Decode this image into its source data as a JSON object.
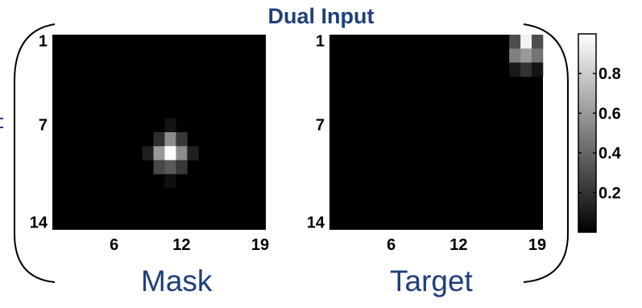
{
  "header": {
    "title": "Dual Input"
  },
  "labels": {
    "mask": "Mask",
    "target": "Target"
  },
  "colors": {
    "title_text": "#1f3f7a",
    "bracket": "#000000",
    "background": "#ffffff"
  },
  "chart_data": [
    {
      "name": "Mask",
      "type": "heatmap",
      "colormap": "gray",
      "n_rows": 14,
      "n_cols": 19,
      "y_ticks": [
        1,
        7,
        14
      ],
      "x_ticks": [
        6,
        12,
        19
      ],
      "cells": [
        {
          "row": 7,
          "col": 11,
          "value": 0.08
        },
        {
          "row": 8,
          "col": 10,
          "value": 0.18
        },
        {
          "row": 8,
          "col": 11,
          "value": 0.55
        },
        {
          "row": 8,
          "col": 12,
          "value": 0.22
        },
        {
          "row": 9,
          "col": 9,
          "value": 0.12
        },
        {
          "row": 9,
          "col": 10,
          "value": 0.6
        },
        {
          "row": 9,
          "col": 11,
          "value": 1.0
        },
        {
          "row": 9,
          "col": 12,
          "value": 0.55
        },
        {
          "row": 9,
          "col": 13,
          "value": 0.12
        },
        {
          "row": 10,
          "col": 10,
          "value": 0.28
        },
        {
          "row": 10,
          "col": 11,
          "value": 0.35
        },
        {
          "row": 10,
          "col": 12,
          "value": 0.22
        },
        {
          "row": 11,
          "col": 11,
          "value": 0.06
        }
      ]
    },
    {
      "name": "Target",
      "type": "heatmap",
      "colormap": "gray",
      "n_rows": 14,
      "n_cols": 19,
      "y_ticks": [
        1,
        7,
        14
      ],
      "x_ticks": [
        6,
        12,
        19
      ],
      "cells": [
        {
          "row": 1,
          "col": 17,
          "value": 0.3
        },
        {
          "row": 1,
          "col": 18,
          "value": 0.95
        },
        {
          "row": 1,
          "col": 19,
          "value": 0.3
        },
        {
          "row": 2,
          "col": 17,
          "value": 0.5
        },
        {
          "row": 2,
          "col": 18,
          "value": 0.6
        },
        {
          "row": 2,
          "col": 19,
          "value": 0.45
        },
        {
          "row": 3,
          "col": 17,
          "value": 0.1
        },
        {
          "row": 3,
          "col": 18,
          "value": 0.2
        },
        {
          "row": 3,
          "col": 19,
          "value": 0.08
        }
      ]
    },
    {
      "name": "colorbar",
      "type": "colorbar",
      "range": [
        0,
        1
      ],
      "ticks": [
        0.2,
        0.4,
        0.6,
        0.8
      ]
    }
  ]
}
